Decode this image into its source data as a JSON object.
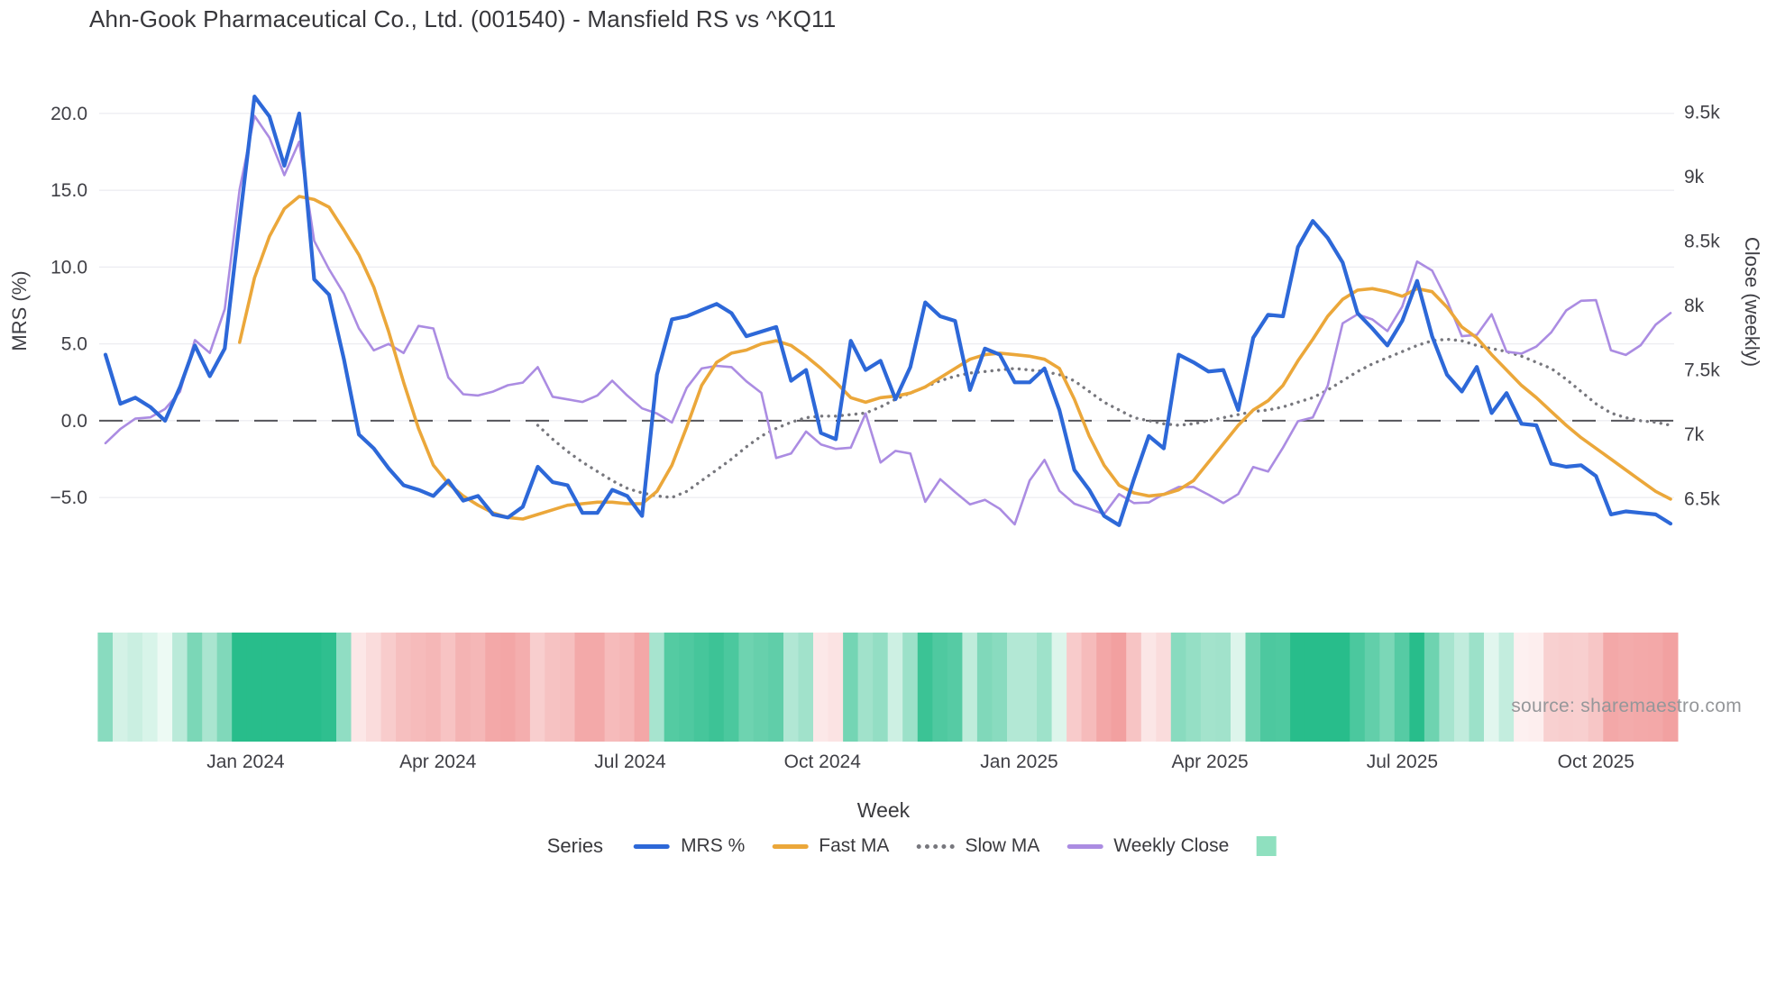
{
  "title": "Ahn-Gook Pharmaceutical Co., Ltd. (001540) - Mansfield RS vs ^KQ11",
  "watermark": "source: sharemaestro.com",
  "axes": {
    "x": {
      "label": "Week",
      "tick_labels": [
        "Jan 2024",
        "Apr 2024",
        "Jul 2024",
        "Oct 2024",
        "Jan 2025",
        "Apr 2025",
        "Jul 2025",
        "Oct 2025"
      ],
      "tick_week_index": [
        9.4,
        22.3,
        35.2,
        48.1,
        61.3,
        74.1,
        87.0,
        100.0
      ]
    },
    "left": {
      "label": "MRS (%)",
      "tick_labels": [
        "20.0",
        "15.0",
        "10.0",
        "5.0",
        "0.0",
        "−5.0"
      ],
      "tick_values": [
        20,
        15,
        10,
        5,
        0,
        -5
      ]
    },
    "right": {
      "label": "Close (weekly)",
      "tick_labels": [
        "9.5k",
        "9k",
        "8.5k",
        "8k",
        "7.5k",
        "7k",
        "6.5k"
      ],
      "tick_values": [
        9500,
        9000,
        8500,
        8000,
        7500,
        7000,
        6500
      ]
    }
  },
  "legend": {
    "label": "Series",
    "items": [
      {
        "name": "MRS %",
        "color": "#2d68d8",
        "style": "line"
      },
      {
        "name": "Fast MA",
        "color": "#eba73a",
        "style": "line"
      },
      {
        "name": "Slow MA",
        "color": "#77777d",
        "style": "dotted"
      },
      {
        "name": "Weekly Close",
        "color": "#ab8ce2",
        "style": "line"
      },
      {
        "name": "",
        "color": "#8fe0bf",
        "style": "square"
      }
    ]
  },
  "chart_data": {
    "type": "line",
    "x_unit": "week",
    "zero_line": 0,
    "left_axis_range": [
      -8.5,
      22
    ],
    "right_axis_range": [
      6100,
      9700
    ],
    "series": [
      {
        "name": "MRS %",
        "axis": "left",
        "color": "#2d68d8",
        "width": 4.2,
        "dash": "solid",
        "values": [
          4.3,
          1.1,
          1.5,
          0.9,
          0.0,
          2.2,
          4.9,
          2.9,
          4.7,
          13.0,
          21.1,
          19.8,
          16.6,
          20.0,
          9.2,
          8.2,
          4.0,
          -0.9,
          -1.8,
          -3.1,
          -4.2,
          -4.5,
          -4.9,
          -3.9,
          -5.2,
          -4.9,
          -6.1,
          -6.3,
          -5.6,
          -3.0,
          -4.0,
          -4.2,
          -6.0,
          -6.0,
          -4.5,
          -4.9,
          -6.2,
          3.0,
          6.6,
          6.8,
          7.2,
          7.6,
          7.0,
          5.5,
          5.8,
          6.1,
          2.6,
          3.3,
          -0.8,
          -1.2,
          5.2,
          3.3,
          3.9,
          1.4,
          3.5,
          7.7,
          6.8,
          6.5,
          2.0,
          4.7,
          4.3,
          2.5,
          2.5,
          3.4,
          0.7,
          -3.2,
          -4.5,
          -6.2,
          -6.8,
          -3.8,
          -1.0,
          -1.8,
          4.3,
          3.8,
          3.2,
          3.3,
          0.7,
          5.4,
          6.9,
          6.8,
          11.3,
          13.0,
          11.9,
          10.3,
          7.0,
          6.0,
          4.9,
          6.5,
          9.1,
          5.5,
          3.0,
          1.9,
          3.5,
          0.5,
          1.8,
          -0.2,
          -0.3,
          -2.8,
          -3.0,
          -2.9,
          -3.6,
          -6.1,
          -5.9,
          -6.0,
          -6.1,
          -6.7
        ]
      },
      {
        "name": "Fast MA",
        "axis": "left",
        "color": "#eba73a",
        "width": 3.6,
        "dash": "solid",
        "values": [
          null,
          null,
          null,
          null,
          null,
          null,
          null,
          null,
          null,
          5.1,
          9.3,
          12.0,
          13.8,
          14.6,
          14.4,
          13.9,
          12.4,
          10.8,
          8.7,
          5.8,
          2.5,
          -0.5,
          -2.9,
          -4.1,
          -4.9,
          -5.5,
          -6.0,
          -6.3,
          -6.4,
          -6.1,
          -5.8,
          -5.5,
          -5.4,
          -5.3,
          -5.3,
          -5.4,
          -5.4,
          -4.6,
          -2.9,
          -0.4,
          2.3,
          3.8,
          4.4,
          4.6,
          5.0,
          5.2,
          4.9,
          4.2,
          3.4,
          2.5,
          1.5,
          1.2,
          1.5,
          1.6,
          1.8,
          2.2,
          2.8,
          3.4,
          4.0,
          4.3,
          4.4,
          4.3,
          4.2,
          4.0,
          3.4,
          1.4,
          -1.0,
          -2.9,
          -4.2,
          -4.7,
          -4.9,
          -4.8,
          -4.5,
          -3.9,
          -2.7,
          -1.5,
          -0.3,
          0.7,
          1.3,
          2.3,
          3.9,
          5.3,
          6.8,
          7.9,
          8.5,
          8.6,
          8.4,
          8.1,
          8.6,
          8.4,
          7.4,
          6.1,
          5.4,
          4.3,
          3.3,
          2.3,
          1.5,
          0.6,
          -0.3,
          -1.1,
          -1.8,
          -2.5,
          -3.2,
          -3.9,
          -4.6,
          -5.1
        ]
      },
      {
        "name": "Slow MA",
        "axis": "left",
        "color": "#77777d",
        "width": 3.4,
        "dash": "dotted",
        "values": [
          null,
          null,
          null,
          null,
          null,
          null,
          null,
          null,
          null,
          null,
          null,
          null,
          null,
          null,
          null,
          null,
          null,
          null,
          null,
          null,
          null,
          null,
          null,
          null,
          null,
          null,
          null,
          null,
          null,
          -0.3,
          -1.2,
          -2.0,
          -2.7,
          -3.3,
          -3.9,
          -4.4,
          -4.7,
          -4.9,
          -5.0,
          -4.6,
          -3.9,
          -3.2,
          -2.5,
          -1.7,
          -1.0,
          -0.5,
          -0.1,
          0.2,
          0.3,
          0.3,
          0.4,
          0.5,
          0.9,
          1.4,
          1.8,
          2.2,
          2.6,
          2.9,
          3.1,
          3.2,
          3.3,
          3.4,
          3.3,
          3.2,
          3.0,
          2.6,
          1.9,
          1.2,
          0.7,
          0.2,
          0.0,
          -0.2,
          -0.3,
          -0.2,
          0.0,
          0.2,
          0.4,
          0.6,
          0.7,
          0.9,
          1.2,
          1.5,
          2.0,
          2.6,
          3.2,
          3.7,
          4.1,
          4.5,
          4.9,
          5.2,
          5.3,
          5.2,
          4.9,
          4.7,
          4.5,
          4.2,
          3.8,
          3.4,
          2.7,
          1.9,
          1.1,
          0.5,
          0.2,
          0.0,
          -0.1,
          -0.3
        ]
      },
      {
        "name": "Weekly Close",
        "axis": "right",
        "color": "#ab8ce2",
        "width": 2.6,
        "dash": "solid",
        "values": [
          6930,
          7040,
          7120,
          7130,
          7195,
          7330,
          7730,
          7630,
          7970,
          8900,
          9470,
          9300,
          9010,
          9270,
          8500,
          8280,
          8090,
          7820,
          7650,
          7700,
          7630,
          7840,
          7820,
          7440,
          7310,
          7300,
          7330,
          7380,
          7400,
          7520,
          7290,
          7270,
          7250,
          7300,
          7415,
          7300,
          7200,
          7160,
          7090,
          7360,
          7510,
          7530,
          7520,
          7410,
          7320,
          6815,
          6850,
          7020,
          6920,
          6885,
          6895,
          7160,
          6780,
          6870,
          6850,
          6475,
          6650,
          6550,
          6455,
          6490,
          6420,
          6300,
          6640,
          6800,
          6560,
          6460,
          6420,
          6380,
          6535,
          6465,
          6470,
          6535,
          6590,
          6590,
          6530,
          6465,
          6535,
          6745,
          6710,
          6895,
          7100,
          7130,
          7375,
          7860,
          7930,
          7890,
          7800,
          7990,
          8340,
          8270,
          8040,
          7760,
          7770,
          7930,
          7640,
          7625,
          7680,
          7790,
          7960,
          8035,
          8040,
          7650,
          7615,
          7690,
          7850,
          7940
        ]
      }
    ],
    "heatmap": {
      "source": "MRS %",
      "positive_color": "#28bd8b",
      "positive_light": "#edfaf4",
      "negative_color": "#ef8b8b",
      "negative_light": "#fdf2f2",
      "max_abs": 8.5
    }
  }
}
